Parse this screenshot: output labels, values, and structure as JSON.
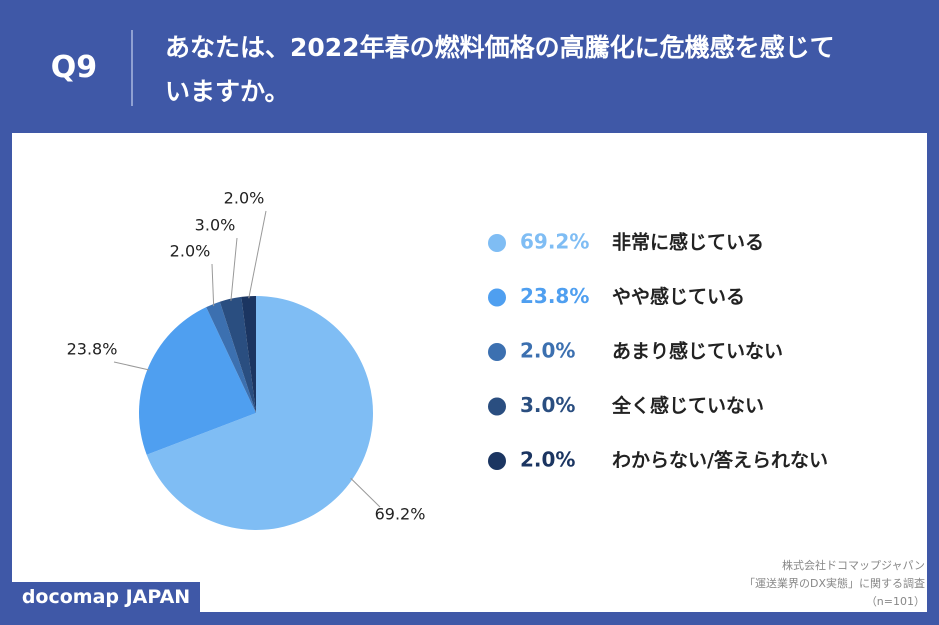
{
  "header": {
    "label": "Q9",
    "question": "あなたは、2022年春の燃料価格の高騰化に危機感を感じていますか。"
  },
  "chart_data": {
    "type": "pie",
    "categories": [
      "非常に感じている",
      "やや感じている",
      "あまり感じていない",
      "全く感じていない",
      "わからない/答えられない"
    ],
    "values": [
      69.2,
      23.8,
      2.0,
      3.0,
      2.0
    ],
    "value_labels": [
      "69.2%",
      "23.8%",
      "2.0%",
      "3.0%",
      "2.0%"
    ],
    "colors": [
      "#7fbdf4",
      "#4f9ff0",
      "#3c70b0",
      "#2a4e80",
      "#1b3561"
    ]
  },
  "footer": {
    "brand": "docomap JAPAN",
    "source": [
      "株式会社ドコマップジャパン",
      "「運送業界のDX実態」に関する調査",
      "（n=101）"
    ]
  }
}
